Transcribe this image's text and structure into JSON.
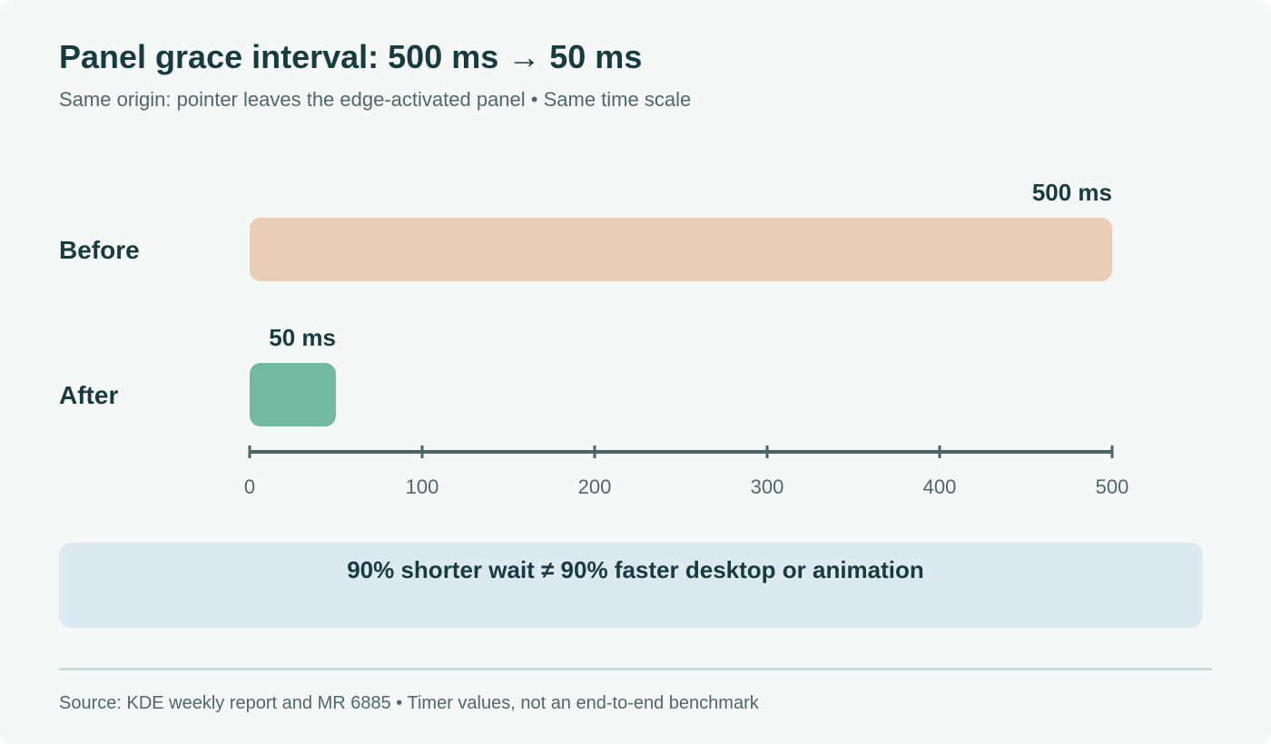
{
  "title": "Panel grace interval: 500 ms → 50 ms",
  "subtitle": "Same origin: pointer leaves the edge-activated panel • Same time scale",
  "callout": "90% shorter wait ≠ 90% faster desktop or animation",
  "source": "Source: KDE weekly report and MR 6885 • Timer values, not an end-to-end benchmark",
  "colors": {
    "before_bar": "#e8cdb7",
    "after_bar": "#71b9a1",
    "axis": "#4d6466",
    "label_text": "#173b3f",
    "tick_text": "#4f6769",
    "callout_bg": "#dce9f1"
  },
  "chart_data": {
    "type": "bar",
    "orientation": "horizontal",
    "categories": [
      "Before",
      "After"
    ],
    "values": [
      500,
      50
    ],
    "data_labels": [
      "500 ms",
      "50 ms"
    ],
    "xlim": [
      0,
      500
    ],
    "xticks": [
      0,
      100,
      200,
      300,
      400,
      500
    ],
    "grid": false,
    "legend": "none"
  }
}
